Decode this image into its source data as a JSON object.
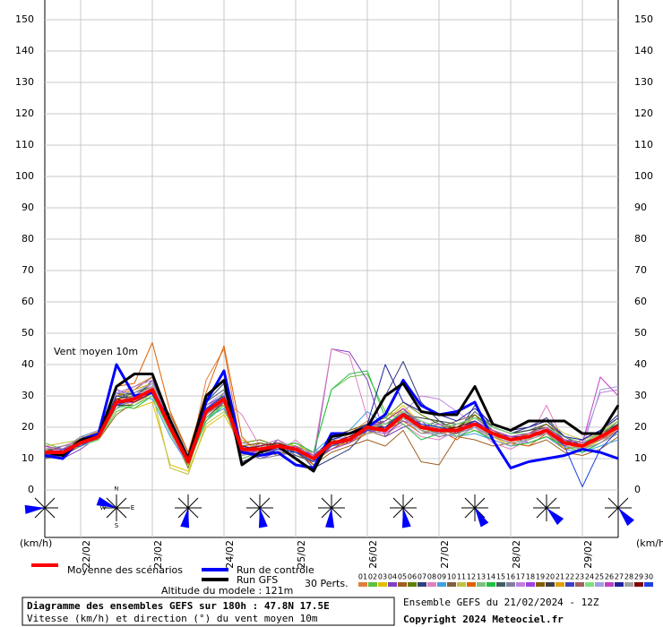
{
  "chart_data": {
    "type": "line",
    "title": "Diagramme des ensembles GEFS sur 180h : 47.8N 17.5E",
    "subtitle": "Vitesse (km/h) et direction (°) du vent moyen 10m",
    "annotation": "Vent moyen 10m",
    "unit_label": "(km/h)",
    "altitude": "Altitude du modele : 121m",
    "perts_label": "30 Perts.",
    "run_info": "Ensemble GEFS du 21/02/2024 - 12Z",
    "copyright": "Copyright 2024 Meteociel.fr",
    "compass": {
      "n": "N",
      "w": "W",
      "e": "E",
      "s": "S"
    },
    "ylim": [
      0,
      150
    ],
    "yticks": [
      0,
      10,
      20,
      30,
      40,
      50,
      60,
      70,
      80,
      90,
      100,
      110,
      120,
      130,
      140,
      150
    ],
    "grid": true,
    "categories": [
      null,
      null,
      "22/02",
      null,
      null,
      null,
      "23/02",
      null,
      null,
      null,
      "24/02",
      null,
      null,
      null,
      "25/02",
      null,
      null,
      null,
      "26/02",
      null,
      null,
      null,
      "27/02",
      null,
      null,
      null,
      "28/02",
      null,
      null,
      null,
      "29/02",
      null,
      null
    ],
    "series": [
      {
        "name": "Moyenne des scénarios",
        "color": "#ff0000",
        "values": [
          12,
          12,
          15,
          17,
          28,
          29,
          32,
          20,
          9,
          25,
          29,
          13,
          13,
          14,
          13,
          10,
          15,
          16,
          20,
          19,
          24,
          20,
          19,
          19,
          21,
          18,
          16,
          17,
          19,
          15,
          14,
          17,
          20
        ]
      },
      {
        "name": "Run de contrôle",
        "color": "#0000ff",
        "values": [
          11,
          10,
          16,
          18,
          40,
          30,
          31,
          22,
          9,
          28,
          38,
          12,
          11,
          12,
          8,
          7,
          18,
          18,
          20,
          24,
          35,
          27,
          24,
          25,
          28,
          16,
          7,
          9,
          10,
          11,
          13,
          12,
          10
        ]
      },
      {
        "name": "Run GFS",
        "color": "#000000",
        "values": [
          12,
          11,
          16,
          17,
          33,
          37,
          37,
          22,
          10,
          30,
          35,
          8,
          12,
          14,
          10,
          6,
          17,
          18,
          20,
          30,
          34,
          25,
          24,
          24,
          33,
          21,
          19,
          22,
          22,
          22,
          18,
          18,
          27
        ]
      },
      {
        "name": "01",
        "color": "#e08040",
        "values": [
          13,
          14,
          16,
          18,
          30,
          33,
          36,
          18,
          8,
          35,
          45,
          12,
          14,
          16,
          12,
          9,
          14,
          18,
          22,
          20,
          26,
          19,
          17,
          18,
          22,
          17,
          15,
          16,
          18,
          14,
          13,
          16,
          21
        ]
      },
      {
        "name": "02",
        "color": "#60c040",
        "values": [
          15,
          13,
          17,
          16,
          25,
          27,
          30,
          22,
          10,
          22,
          28,
          10,
          12,
          15,
          14,
          12,
          32,
          36,
          37,
          25,
          22,
          18,
          20,
          17,
          24,
          20,
          18,
          19,
          21,
          16,
          12,
          15,
          19
        ]
      },
      {
        "name": "03",
        "color": "#e0c000",
        "values": [
          11,
          12,
          14,
          19,
          27,
          26,
          28,
          8,
          6,
          20,
          24,
          14,
          15,
          13,
          15,
          11,
          13,
          15,
          18,
          22,
          27,
          21,
          19,
          20,
          19,
          17,
          14,
          18,
          20,
          13,
          15,
          18,
          22
        ]
      },
      {
        "name": "04",
        "color": "#8040c0",
        "values": [
          12,
          10,
          13,
          17,
          32,
          30,
          34,
          21,
          10,
          27,
          30,
          14,
          10,
          12,
          11,
          9,
          45,
          44,
          35,
          17,
          20,
          22,
          18,
          21,
          23,
          19,
          17,
          15,
          17,
          14,
          16,
          19,
          24
        ]
      },
      {
        "name": "05",
        "color": "#a06020",
        "values": [
          14,
          13,
          15,
          16,
          24,
          28,
          31,
          24,
          12,
          26,
          27,
          11,
          13,
          11,
          14,
          8,
          12,
          14,
          16,
          14,
          19,
          9,
          8,
          17,
          16,
          14,
          15,
          14,
          16,
          12,
          11,
          13,
          17
        ]
      },
      {
        "name": "06",
        "color": "#608000",
        "values": [
          10,
          11,
          16,
          18,
          29,
          31,
          33,
          19,
          7,
          24,
          31,
          15,
          16,
          14,
          12,
          10,
          16,
          15,
          21,
          23,
          28,
          24,
          21,
          20,
          22,
          19,
          16,
          17,
          18,
          16,
          15,
          17,
          20
        ]
      },
      {
        "name": "07",
        "color": "#304080",
        "values": [
          13,
          12,
          15,
          17,
          31,
          29,
          35,
          23,
          11,
          28,
          34,
          9,
          11,
          16,
          13,
          7,
          10,
          13,
          19,
          30,
          41,
          28,
          22,
          18,
          27,
          20,
          18,
          20,
          23,
          17,
          14,
          19,
          24
        ]
      },
      {
        "name": "08",
        "color": "#e080c0",
        "values": [
          12,
          14,
          16,
          18,
          27,
          28,
          32,
          20,
          9,
          27,
          29,
          24,
          14,
          12,
          16,
          11,
          45,
          43,
          23,
          18,
          21,
          17,
          16,
          19,
          20,
          15,
          13,
          16,
          27,
          15,
          13,
          16,
          18
        ]
      },
      {
        "name": "09",
        "color": "#40a0e0",
        "values": [
          11,
          13,
          17,
          19,
          26,
          30,
          29,
          17,
          8,
          23,
          26,
          13,
          12,
          14,
          13,
          12,
          17,
          19,
          25,
          21,
          24,
          20,
          18,
          17,
          18,
          16,
          14,
          15,
          17,
          13,
          12,
          14,
          16
        ]
      },
      {
        "name": "10",
        "color": "#806040",
        "values": [
          12,
          11,
          14,
          17,
          30,
          32,
          36,
          22,
          10,
          26,
          30,
          12,
          15,
          13,
          12,
          9,
          13,
          16,
          19,
          17,
          23,
          21,
          20,
          22,
          24,
          18,
          16,
          18,
          19,
          16,
          15,
          18,
          21
        ]
      },
      {
        "name": "11",
        "color": "#c0c040",
        "values": [
          14,
          15,
          16,
          17,
          28,
          27,
          31,
          7,
          5,
          21,
          25,
          16,
          13,
          15,
          14,
          10,
          15,
          17,
          20,
          24,
          25,
          19,
          21,
          20,
          23,
          21,
          19,
          20,
          22,
          18,
          16,
          18,
          23
        ]
      },
      {
        "name": "12",
        "color": "#e06000",
        "values": [
          10,
          12,
          15,
          18,
          33,
          34,
          47,
          25,
          12,
          31,
          46,
          17,
          11,
          13,
          12,
          8,
          14,
          15,
          18,
          19,
          22,
          18,
          19,
          16,
          21,
          17,
          15,
          14,
          18,
          13,
          14,
          16,
          19
        ]
      },
      {
        "name": "13",
        "color": "#80c080",
        "values": [
          12,
          13,
          17,
          18,
          29,
          30,
          33,
          21,
          10,
          24,
          28,
          11,
          14,
          12,
          13,
          11,
          16,
          18,
          21,
          20,
          24,
          22,
          20,
          21,
          22,
          18,
          17,
          16,
          20,
          15,
          13,
          17,
          21
        ]
      },
      {
        "name": "14",
        "color": "#20c040",
        "values": [
          13,
          12,
          14,
          16,
          27,
          26,
          30,
          19,
          8,
          22,
          27,
          13,
          12,
          14,
          15,
          12,
          32,
          37,
          38,
          23,
          21,
          16,
          18,
          17,
          19,
          16,
          14,
          15,
          17,
          14,
          12,
          15,
          18
        ]
      },
      {
        "name": "15",
        "color": "#406060",
        "values": [
          11,
          10,
          16,
          19,
          30,
          31,
          34,
          23,
          9,
          28,
          32,
          14,
          13,
          15,
          11,
          9,
          15,
          17,
          19,
          22,
          26,
          20,
          22,
          19,
          25,
          20,
          18,
          19,
          21,
          16,
          15,
          17,
          22
        ]
      },
      {
        "name": "16",
        "color": "#8080a0",
        "values": [
          12,
          13,
          15,
          17,
          26,
          29,
          32,
          20,
          10,
          25,
          30,
          12,
          10,
          11,
          12,
          10,
          14,
          16,
          18,
          20,
          23,
          19,
          17,
          18,
          20,
          17,
          15,
          16,
          18,
          14,
          13,
          15,
          19
        ]
      },
      {
        "name": "17",
        "color": "#c080e0",
        "values": [
          14,
          12,
          16,
          18,
          31,
          33,
          35,
          18,
          8,
          24,
          29,
          15,
          14,
          16,
          13,
          11,
          16,
          18,
          20,
          21,
          25,
          30,
          29,
          25,
          21,
          19,
          17,
          18,
          20,
          16,
          15,
          31,
          32
        ]
      },
      {
        "name": "18",
        "color": "#a040e0",
        "values": [
          11,
          13,
          14,
          17,
          28,
          28,
          31,
          21,
          11,
          27,
          31,
          13,
          12,
          13,
          14,
          10,
          13,
          15,
          19,
          18,
          22,
          20,
          21,
          19,
          22,
          18,
          16,
          17,
          19,
          15,
          14,
          16,
          20
        ]
      },
      {
        "name": "19",
        "color": "#806000",
        "values": [
          13,
          12,
          17,
          16,
          29,
          30,
          33,
          20,
          9,
          26,
          29,
          14,
          15,
          14,
          12,
          9,
          17,
          19,
          21,
          22,
          26,
          21,
          20,
          20,
          24,
          19,
          17,
          18,
          21,
          17,
          15,
          18,
          22
        ]
      },
      {
        "name": "20",
        "color": "#404040",
        "values": [
          12,
          11,
          15,
          18,
          27,
          27,
          30,
          22,
          10,
          23,
          28,
          12,
          13,
          12,
          13,
          11,
          15,
          16,
          20,
          21,
          24,
          23,
          22,
          21,
          23,
          20,
          18,
          19,
          20,
          16,
          14,
          17,
          21
        ]
      },
      {
        "name": "21",
        "color": "#e0a000",
        "values": [
          10,
          12,
          16,
          19,
          30,
          32,
          34,
          19,
          8,
          25,
          30,
          11,
          12,
          14,
          12,
          10,
          14,
          17,
          18,
          19,
          23,
          19,
          18,
          19,
          21,
          17,
          16,
          17,
          19,
          14,
          13,
          16,
          20
        ]
      },
      {
        "name": "22",
        "color": "#4040c0",
        "values": [
          12,
          14,
          15,
          17,
          28,
          29,
          32,
          21,
          10,
          26,
          29,
          13,
          14,
          15,
          13,
          11,
          16,
          18,
          21,
          20,
          25,
          20,
          19,
          20,
          22,
          18,
          17,
          17,
          19,
          15,
          14,
          17,
          21
        ]
      },
      {
        "name": "23",
        "color": "#a06060",
        "values": [
          13,
          13,
          16,
          18,
          29,
          28,
          31,
          20,
          9,
          24,
          28,
          12,
          13,
          13,
          14,
          10,
          15,
          16,
          19,
          19,
          24,
          20,
          19,
          18,
          21,
          18,
          16,
          17,
          18,
          15,
          14,
          16,
          20
        ]
      },
      {
        "name": "24",
        "color": "#80e080",
        "values": [
          11,
          12,
          14,
          16,
          26,
          27,
          30,
          18,
          9,
          23,
          27,
          14,
          12,
          14,
          12,
          11,
          14,
          16,
          20,
          21,
          25,
          22,
          20,
          21,
          23,
          20,
          18,
          18,
          20,
          17,
          15,
          18,
          22
        ]
      },
      {
        "name": "25",
        "color": "#a0a0e0",
        "values": [
          12,
          13,
          17,
          19,
          31,
          31,
          34,
          22,
          11,
          27,
          31,
          13,
          14,
          15,
          13,
          10,
          16,
          17,
          19,
          20,
          23,
          18,
          18,
          17,
          20,
          16,
          14,
          16,
          18,
          14,
          13,
          32,
          33
        ]
      },
      {
        "name": "26",
        "color": "#c040c0",
        "values": [
          14,
          13,
          15,
          17,
          27,
          30,
          33,
          20,
          10,
          25,
          28,
          12,
          12,
          13,
          14,
          11,
          15,
          17,
          20,
          22,
          26,
          21,
          20,
          19,
          22,
          19,
          17,
          18,
          20,
          16,
          15,
          36,
          30
        ]
      },
      {
        "name": "27",
        "color": "#2020a0",
        "values": [
          11,
          11,
          16,
          18,
          30,
          29,
          32,
          21,
          9,
          26,
          30,
          14,
          13,
          14,
          12,
          10,
          16,
          18,
          21,
          40,
          28,
          25,
          24,
          22,
          26,
          21,
          19,
          20,
          22,
          17,
          16,
          19,
          23
        ]
      },
      {
        "name": "28",
        "color": "#a0a0a0",
        "values": [
          13,
          14,
          15,
          17,
          28,
          30,
          33,
          19,
          10,
          24,
          29,
          11,
          12,
          12,
          13,
          12,
          14,
          16,
          18,
          19,
          23,
          19,
          18,
          19,
          21,
          17,
          15,
          16,
          18,
          14,
          13,
          15,
          18
        ]
      },
      {
        "name": "29",
        "color": "#800000",
        "values": [
          12,
          12,
          16,
          18,
          29,
          28,
          31,
          20,
          9,
          25,
          29,
          13,
          14,
          15,
          13,
          10,
          15,
          17,
          20,
          20,
          24,
          20,
          19,
          20,
          22,
          18,
          16,
          17,
          19,
          15,
          14,
          17,
          21
        ]
      },
      {
        "name": "30",
        "color": "#2040e0",
        "values": [
          10,
          13,
          14,
          17,
          27,
          29,
          32,
          21,
          11,
          26,
          30,
          12,
          11,
          13,
          12,
          9,
          14,
          16,
          19,
          20,
          24,
          21,
          20,
          19,
          22,
          18,
          16,
          17,
          19,
          14,
          1,
          13,
          19
        ]
      }
    ]
  }
}
